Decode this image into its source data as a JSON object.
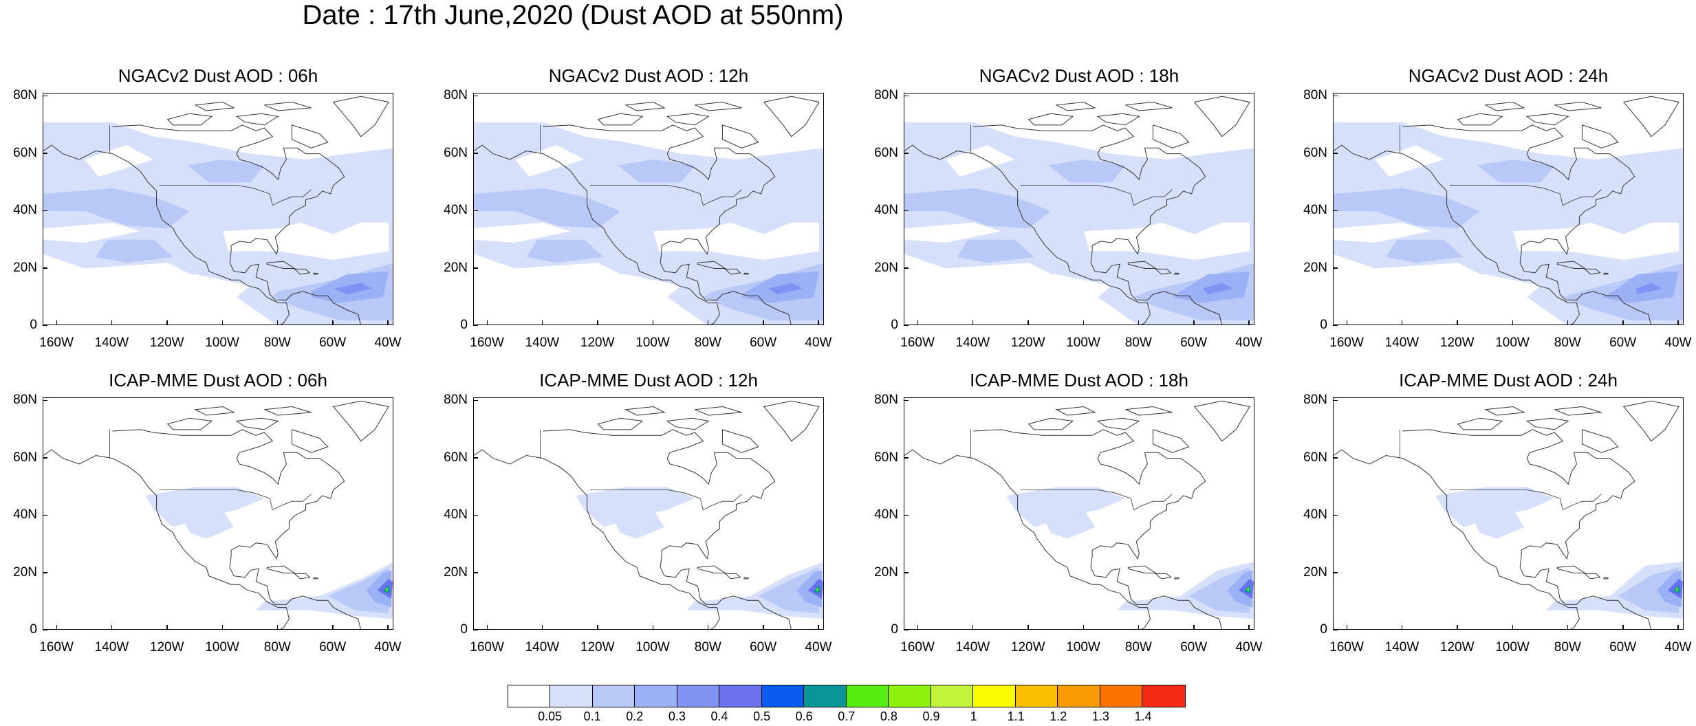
{
  "title": "Date : 17th June,2020 (Dust AOD at 550nm)",
  "panels": [
    {
      "title": "NGACv2 Dust AOD : 06h",
      "model": "NGACv2",
      "hour": "06h"
    },
    {
      "title": "NGACv2 Dust AOD : 12h",
      "model": "NGACv2",
      "hour": "12h"
    },
    {
      "title": "NGACv2 Dust AOD : 18h",
      "model": "NGACv2",
      "hour": "18h"
    },
    {
      "title": "NGACv2 Dust AOD : 24h",
      "model": "NGACv2",
      "hour": "24h"
    },
    {
      "title": "ICAP-MME Dust AOD : 06h",
      "model": "ICAP-MME",
      "hour": "06h"
    },
    {
      "title": "ICAP-MME Dust AOD : 12h",
      "model": "ICAP-MME",
      "hour": "12h"
    },
    {
      "title": "ICAP-MME Dust AOD : 18h",
      "model": "ICAP-MME",
      "hour": "18h"
    },
    {
      "title": "ICAP-MME Dust AOD : 24h",
      "model": "ICAP-MME",
      "hour": "24h"
    }
  ],
  "lat_labels": [
    "80N",
    "60N",
    "40N",
    "20N",
    "0"
  ],
  "lon_labels": [
    "160W",
    "140W",
    "120W",
    "100W",
    "80W",
    "60W",
    "40W"
  ],
  "colorbar": {
    "labels": [
      "0.05",
      "0.1",
      "0.2",
      "0.3",
      "0.4",
      "0.5",
      "0.6",
      "0.7",
      "0.8",
      "0.9",
      "1",
      "1.1",
      "1.2",
      "1.3",
      "1.4"
    ],
    "colors": [
      "#ffffff",
      "#d6e0fb",
      "#b8c8f7",
      "#9ab1f5",
      "#8193f2",
      "#6a72ee",
      "#0a5cf0",
      "#0a9696",
      "#54ee12",
      "#8ef20e",
      "#c2f43c",
      "#fafa00",
      "#fbc000",
      "#fb9a00",
      "#f97300",
      "#f32a14"
    ]
  }
}
